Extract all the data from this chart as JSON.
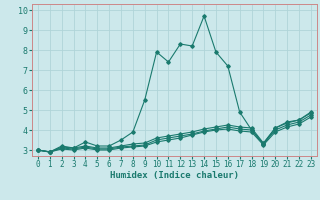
{
  "xlabel": "Humidex (Indice chaleur)",
  "xlim": [
    -0.5,
    23.5
  ],
  "ylim": [
    2.7,
    10.3
  ],
  "xticks": [
    0,
    1,
    2,
    3,
    4,
    5,
    6,
    7,
    8,
    9,
    10,
    11,
    12,
    13,
    14,
    15,
    16,
    17,
    18,
    19,
    20,
    21,
    22,
    23
  ],
  "yticks": [
    3,
    4,
    5,
    6,
    7,
    8,
    9,
    10
  ],
  "bg_color": "#cce8eb",
  "grid_color": "#b0d4d8",
  "line_color": "#1a7a6e",
  "spine_color": "#cc8888",
  "lines": [
    {
      "x": [
        0,
        1,
        2,
        3,
        4,
        5,
        6,
        7,
        8,
        9,
        10,
        11,
        12,
        13,
        14,
        15,
        16,
        17,
        18,
        19,
        20,
        21,
        22,
        23
      ],
      "y": [
        3.0,
        2.9,
        3.2,
        3.1,
        3.4,
        3.2,
        3.2,
        3.5,
        3.9,
        5.5,
        7.9,
        7.4,
        8.3,
        8.2,
        9.7,
        7.9,
        7.2,
        4.9,
        4.0,
        3.3,
        4.1,
        4.4,
        4.5,
        4.9
      ]
    },
    {
      "x": [
        0,
        1,
        2,
        3,
        4,
        5,
        6,
        7,
        8,
        9,
        10,
        11,
        12,
        13,
        14,
        15,
        16,
        17,
        18,
        19,
        20,
        21,
        22,
        23
      ],
      "y": [
        3.0,
        2.9,
        3.15,
        3.1,
        3.2,
        3.1,
        3.1,
        3.2,
        3.3,
        3.35,
        3.6,
        3.7,
        3.8,
        3.9,
        4.05,
        4.15,
        4.25,
        4.15,
        4.1,
        3.35,
        4.1,
        4.35,
        4.5,
        4.85
      ]
    },
    {
      "x": [
        0,
        1,
        2,
        3,
        4,
        5,
        6,
        7,
        8,
        9,
        10,
        11,
        12,
        13,
        14,
        15,
        16,
        17,
        18,
        19,
        20,
        21,
        22,
        23
      ],
      "y": [
        3.0,
        2.9,
        3.1,
        3.05,
        3.15,
        3.05,
        3.05,
        3.15,
        3.2,
        3.25,
        3.5,
        3.6,
        3.7,
        3.8,
        3.95,
        4.05,
        4.15,
        4.05,
        4.0,
        3.3,
        4.0,
        4.25,
        4.4,
        4.75
      ]
    },
    {
      "x": [
        0,
        1,
        2,
        3,
        4,
        5,
        6,
        7,
        8,
        9,
        10,
        11,
        12,
        13,
        14,
        15,
        16,
        17,
        18,
        19,
        20,
        21,
        22,
        23
      ],
      "y": [
        3.0,
        2.9,
        3.05,
        3.0,
        3.1,
        3.0,
        3.0,
        3.1,
        3.15,
        3.2,
        3.4,
        3.5,
        3.6,
        3.75,
        3.9,
        4.0,
        4.05,
        3.95,
        3.9,
        3.25,
        3.9,
        4.15,
        4.3,
        4.65
      ]
    }
  ]
}
